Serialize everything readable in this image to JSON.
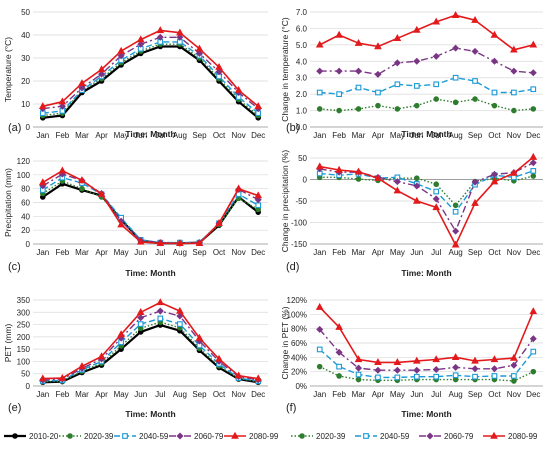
{
  "months": [
    "Jan",
    "Feb",
    "Mar",
    "Apr",
    "May",
    "Jun",
    "Jul",
    "Aug",
    "Sep",
    "Oct",
    "Nov",
    "Dec"
  ],
  "xlabel": "Time: Month",
  "colors": {
    "2010-20": "#000000",
    "2020-39": "#2e7d2e",
    "2040-59": "#1a9ad6",
    "2060-79": "#7b3585",
    "2080-99": "#e31a1c"
  },
  "chart_data": [
    {
      "panel": "(a)",
      "type": "line",
      "ylabel": "Temperature (°C)",
      "ylim": [
        0,
        50
      ],
      "yticks": [
        0,
        10,
        20,
        30,
        40,
        50
      ],
      "categories": [
        "Jan",
        "Feb",
        "Mar",
        "Apr",
        "May",
        "Jun",
        "Jul",
        "Aug",
        "Sep",
        "Oct",
        "Nov",
        "Dec"
      ],
      "series": [
        {
          "name": "2010-20",
          "values": [
            4,
            5,
            15,
            20,
            27,
            32,
            35,
            35,
            29,
            20,
            11,
            4
          ]
        },
        {
          "name": "2020-39",
          "values": [
            5,
            6,
            16,
            21,
            28,
            33,
            36,
            36,
            30,
            21,
            12,
            5
          ]
        },
        {
          "name": "2040-59",
          "values": [
            6,
            7,
            16,
            22,
            29,
            34,
            37,
            37,
            31,
            22,
            13,
            6
          ]
        },
        {
          "name": "2060-79",
          "values": [
            8,
            9,
            17,
            23,
            31,
            36,
            39,
            39,
            32,
            24,
            15,
            8
          ]
        },
        {
          "name": "2080-99",
          "values": [
            9,
            11,
            19,
            25,
            33,
            38,
            42,
            41,
            34,
            26,
            16,
            9
          ]
        }
      ]
    },
    {
      "panel": "(b)",
      "type": "line",
      "ylabel": "Change in temperature (°C)",
      "ylim": [
        0,
        7
      ],
      "yticks": [
        "0.0",
        "1.0",
        "2.0",
        "3.0",
        "4.0",
        "5.0",
        "6.0",
        "7.0"
      ],
      "categories": [
        "Jan",
        "Feb",
        "Mar",
        "Apr",
        "May",
        "Jun",
        "Jul",
        "Aug",
        "Sep",
        "Oct",
        "Nov",
        "Dec"
      ],
      "series": [
        {
          "name": "2020-39",
          "values": [
            1.1,
            1.0,
            1.1,
            1.3,
            1.1,
            1.3,
            1.7,
            1.5,
            1.7,
            1.3,
            1.0,
            1.1
          ]
        },
        {
          "name": "2040-59",
          "values": [
            2.1,
            2.0,
            2.4,
            2.1,
            2.6,
            2.5,
            2.6,
            3.0,
            2.8,
            2.1,
            2.1,
            2.3
          ]
        },
        {
          "name": "2060-79",
          "values": [
            3.4,
            3.4,
            3.4,
            3.2,
            3.9,
            4.0,
            4.3,
            4.8,
            4.6,
            4.0,
            3.4,
            3.3
          ]
        },
        {
          "name": "2080-99",
          "values": [
            5.0,
            5.6,
            5.1,
            4.9,
            5.4,
            5.9,
            6.4,
            6.8,
            6.5,
            5.6,
            4.7,
            5.0
          ]
        }
      ]
    },
    {
      "panel": "(c)",
      "type": "line",
      "ylabel": "Precipitation (mm)",
      "ylim": [
        0,
        120
      ],
      "yticks": [
        0,
        20,
        40,
        60,
        80,
        100,
        120
      ],
      "categories": [
        "Jan",
        "Feb",
        "Mar",
        "Apr",
        "May",
        "Jun",
        "Jul",
        "Aug",
        "Sep",
        "Oct",
        "Nov",
        "Dec"
      ],
      "series": [
        {
          "name": "2010-20",
          "values": [
            68,
            87,
            78,
            70,
            35,
            5,
            1,
            1,
            2,
            27,
            68,
            46
          ]
        },
        {
          "name": "2020-39",
          "values": [
            73,
            91,
            80,
            68,
            36,
            6,
            2,
            2,
            2,
            28,
            66,
            50
          ]
        },
        {
          "name": "2040-59",
          "values": [
            78,
            96,
            88,
            72,
            38,
            6,
            2,
            2,
            2,
            30,
            72,
            56
          ]
        },
        {
          "name": "2060-79",
          "values": [
            84,
            101,
            92,
            73,
            33,
            5,
            2,
            1,
            2,
            30,
            79,
            64
          ]
        },
        {
          "name": "2080-99",
          "values": [
            89,
            106,
            92,
            72,
            28,
            3,
            1,
            1,
            1,
            30,
            80,
            70
          ]
        }
      ]
    },
    {
      "panel": "(d)",
      "type": "line",
      "ylabel": "Change in precipitation (%)",
      "ylim": [
        -150,
        50
      ],
      "yticks": [
        -150,
        -100,
        -50,
        0,
        50
      ],
      "categories": [
        "Jan",
        "Feb",
        "Mar",
        "Apr",
        "May",
        "Jun",
        "Jul",
        "Aug",
        "Sep",
        "Oct",
        "Nov",
        "Dec"
      ],
      "series": [
        {
          "name": "2020-39",
          "values": [
            5,
            5,
            1,
            -2,
            3,
            3,
            -11,
            -60,
            -5,
            3,
            -3,
            8
          ]
        },
        {
          "name": "2040-59",
          "values": [
            14,
            10,
            13,
            3,
            5,
            -10,
            -28,
            -75,
            -12,
            10,
            5,
            20
          ]
        },
        {
          "name": "2060-79",
          "values": [
            25,
            17,
            17,
            5,
            -5,
            -15,
            -45,
            -120,
            -6,
            12,
            16,
            39
          ]
        },
        {
          "name": "2080-99",
          "values": [
            30,
            22,
            18,
            3,
            -26,
            -50,
            -65,
            -152,
            -55,
            -5,
            15,
            52
          ]
        }
      ]
    },
    {
      "panel": "(e)",
      "type": "line",
      "ylabel": "PET (mm)",
      "ylim": [
        0,
        350
      ],
      "yticks": [
        0,
        50,
        100,
        150,
        200,
        250,
        300,
        350
      ],
      "categories": [
        "Jan",
        "Feb",
        "Mar",
        "Apr",
        "May",
        "Jun",
        "Jul",
        "Aug",
        "Sep",
        "Oct",
        "Nov",
        "Dec"
      ],
      "series": [
        {
          "name": "2010-20",
          "values": [
            15,
            18,
            55,
            85,
            150,
            220,
            248,
            225,
            145,
            75,
            28,
            15
          ]
        },
        {
          "name": "2020-39",
          "values": [
            17,
            20,
            60,
            93,
            163,
            235,
            260,
            237,
            153,
            82,
            30,
            17
          ]
        },
        {
          "name": "2040-59",
          "values": [
            20,
            23,
            66,
            100,
            178,
            252,
            275,
            252,
            165,
            90,
            32,
            20
          ]
        },
        {
          "name": "2060-79",
          "values": [
            24,
            28,
            72,
            110,
            195,
            278,
            305,
            285,
            183,
            100,
            38,
            25
          ]
        },
        {
          "name": "2080-99",
          "values": [
            30,
            32,
            80,
            120,
            210,
            300,
            340,
            305,
            195,
            110,
            42,
            30
          ]
        }
      ]
    },
    {
      "panel": "(f)",
      "type": "line",
      "ylabel": "Change in PET (%)",
      "ylim": [
        0,
        120
      ],
      "yticks": [
        "0%",
        "20%",
        "40%",
        "60%",
        "80%",
        "100%",
        "120%"
      ],
      "categories": [
        "Jan",
        "Feb",
        "Mar",
        "Apr",
        "May",
        "Jun",
        "Jul",
        "Aug",
        "Sep",
        "Oct",
        "Nov",
        "Dec"
      ],
      "series": [
        {
          "name": "2020-39",
          "values": [
            27,
            14,
            9,
            8,
            8,
            9,
            9,
            9,
            9,
            9,
            7,
            20
          ]
        },
        {
          "name": "2040-59",
          "values": [
            51,
            27,
            16,
            12,
            12,
            13,
            13,
            15,
            13,
            14,
            14,
            48
          ]
        },
        {
          "name": "2060-79",
          "values": [
            79,
            47,
            25,
            22,
            22,
            22,
            23,
            26,
            24,
            24,
            29,
            66
          ]
        },
        {
          "name": "2080-99",
          "values": [
            110,
            82,
            37,
            33,
            33,
            35,
            37,
            40,
            35,
            37,
            39,
            104
          ]
        }
      ]
    }
  ],
  "legend_left": [
    "2010-20",
    "2020-39",
    "2040-59",
    "2060-79",
    "2080-99"
  ],
  "legend_right": [
    "2020-39",
    "2040-59",
    "2060-79",
    "2080-99"
  ]
}
